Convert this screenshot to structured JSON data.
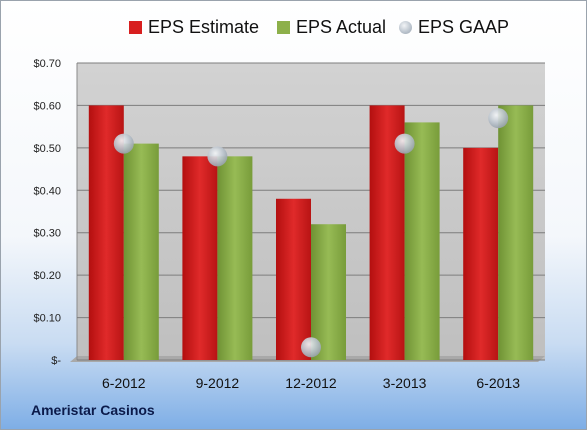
{
  "chart_data": {
    "type": "bar",
    "categories": [
      "6-2012",
      "9-2012",
      "12-2012",
      "3-2013",
      "6-2013"
    ],
    "series": [
      {
        "name": "EPS Estimate",
        "kind": "bar",
        "color": "#d81f1f",
        "values": [
          0.6,
          0.48,
          0.38,
          0.6,
          0.5
        ]
      },
      {
        "name": "EPS Actual",
        "kind": "bar",
        "color": "#8db04a",
        "values": [
          0.51,
          0.48,
          0.32,
          0.56,
          0.6
        ]
      },
      {
        "name": "EPS GAAP",
        "kind": "marker",
        "color": "#b9c2cc",
        "values": [
          0.51,
          0.48,
          0.03,
          0.51,
          0.57
        ]
      }
    ],
    "yticks": [
      "$-",
      "$0.10",
      "$0.20",
      "$0.30",
      "$0.40",
      "$0.50",
      "$0.60",
      "$0.70"
    ],
    "ylim": [
      0,
      0.7
    ],
    "legend_position": "top",
    "grid": true
  },
  "footer": {
    "company": "Ameristar Casinos"
  }
}
